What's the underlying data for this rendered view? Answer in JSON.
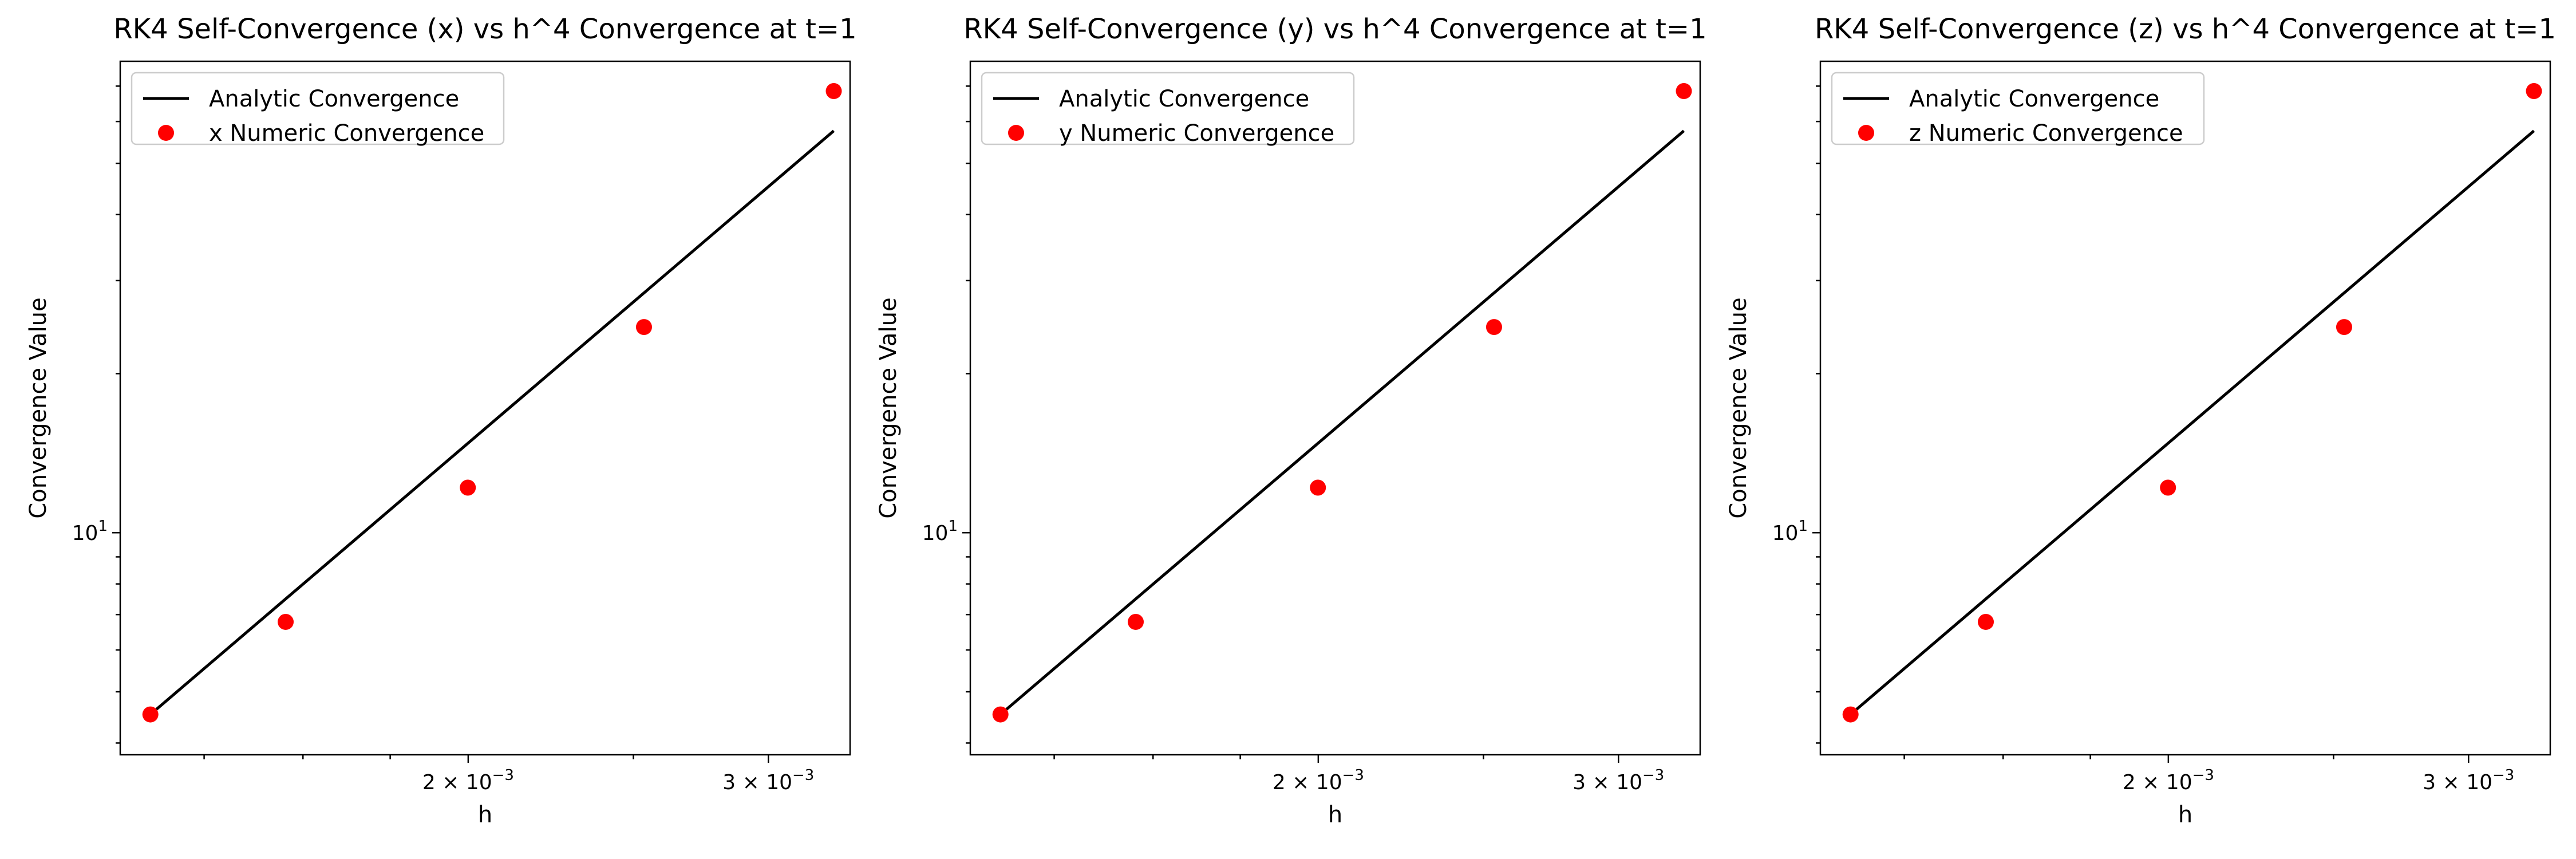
{
  "chart_data": [
    {
      "type": "line",
      "title": "RK4 Self-Convergence (x) vs h^4 Convergence at t=1",
      "xlabel": "h",
      "ylabel": "Convergence Value",
      "x_scale": "log",
      "y_scale": "log",
      "xlim": [
        0.00125,
        0.00335
      ],
      "ylim": [
        3.8,
        78
      ],
      "x_ticks": [
        {
          "value": 0.002,
          "mantissa": "2",
          "base": "10",
          "exp": "−3"
        },
        {
          "value": 0.003,
          "mantissa": "3",
          "base": "10",
          "exp": "−3"
        }
      ],
      "x_minor_ticks": [
        0.0014,
        0.0016,
        0.0018,
        0.0025,
        0.0035
      ],
      "y_ticks": [
        {
          "value": 10,
          "mantissa": "",
          "base": "10",
          "exp": "1"
        }
      ],
      "y_minor_ticks": [
        4,
        5,
        6,
        7,
        8,
        9,
        20,
        30,
        40,
        50,
        60,
        70
      ],
      "grid": false,
      "legend": "upper-left",
      "series": [
        {
          "name": "Analytic Convergence",
          "style": "line",
          "color": "#000000",
          "x": [
            0.001302,
            0.003277
          ],
          "y": [
            4.53,
            57.6
          ]
        },
        {
          "name": "x Numeric Convergence",
          "style": "marker",
          "color": "#ff0000",
          "x": [
            0.001302,
            0.001563,
            0.001999,
            0.002536,
            0.003277
          ],
          "y": [
            4.53,
            6.78,
            12.17,
            24.5,
            68.5
          ]
        }
      ]
    },
    {
      "type": "line",
      "title": "RK4 Self-Convergence (y) vs h^4 Convergence at t=1",
      "xlabel": "h",
      "ylabel": "Convergence Value",
      "x_scale": "log",
      "y_scale": "log",
      "xlim": [
        0.00125,
        0.00335
      ],
      "ylim": [
        3.8,
        78
      ],
      "x_ticks": [
        {
          "value": 0.002,
          "mantissa": "2",
          "base": "10",
          "exp": "−3"
        },
        {
          "value": 0.003,
          "mantissa": "3",
          "base": "10",
          "exp": "−3"
        }
      ],
      "x_minor_ticks": [
        0.0014,
        0.0016,
        0.0018,
        0.0025,
        0.0035
      ],
      "y_ticks": [
        {
          "value": 10,
          "mantissa": "",
          "base": "10",
          "exp": "1"
        }
      ],
      "y_minor_ticks": [
        4,
        5,
        6,
        7,
        8,
        9,
        20,
        30,
        40,
        50,
        60,
        70
      ],
      "grid": false,
      "legend": "upper-left",
      "series": [
        {
          "name": "Analytic Convergence",
          "style": "line",
          "color": "#000000",
          "x": [
            0.001302,
            0.003277
          ],
          "y": [
            4.53,
            57.6
          ]
        },
        {
          "name": "y Numeric Convergence",
          "style": "marker",
          "color": "#ff0000",
          "x": [
            0.001302,
            0.001563,
            0.001999,
            0.002536,
            0.003277
          ],
          "y": [
            4.53,
            6.78,
            12.17,
            24.5,
            68.5
          ]
        }
      ]
    },
    {
      "type": "line",
      "title": "RK4 Self-Convergence (z) vs h^4 Convergence at t=1",
      "xlabel": "h",
      "ylabel": "Convergence Value",
      "x_scale": "log",
      "y_scale": "log",
      "xlim": [
        0.00125,
        0.00335
      ],
      "ylim": [
        3.8,
        78
      ],
      "x_ticks": [
        {
          "value": 0.002,
          "mantissa": "2",
          "base": "10",
          "exp": "−3"
        },
        {
          "value": 0.003,
          "mantissa": "3",
          "base": "10",
          "exp": "−3"
        }
      ],
      "x_minor_ticks": [
        0.0014,
        0.0016,
        0.0018,
        0.0025,
        0.0035
      ],
      "y_ticks": [
        {
          "value": 10,
          "mantissa": "",
          "base": "10",
          "exp": "1"
        }
      ],
      "y_minor_ticks": [
        4,
        5,
        6,
        7,
        8,
        9,
        20,
        30,
        40,
        50,
        60,
        70
      ],
      "grid": false,
      "legend": "upper-left",
      "series": [
        {
          "name": "Analytic Convergence",
          "style": "line",
          "color": "#000000",
          "x": [
            0.001302,
            0.003277
          ],
          "y": [
            4.53,
            57.6
          ]
        },
        {
          "name": "z Numeric Convergence",
          "style": "marker",
          "color": "#ff0000",
          "x": [
            0.001302,
            0.001563,
            0.001999,
            0.002536,
            0.003277
          ],
          "y": [
            4.53,
            6.78,
            12.17,
            24.5,
            68.5
          ]
        }
      ]
    }
  ]
}
